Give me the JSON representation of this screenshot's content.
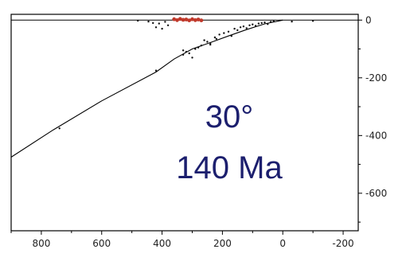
{
  "colors": {
    "frame": "#000000",
    "slab": "#000000",
    "quake_black": "#111111",
    "quake_red": "#c0392b",
    "label": "#1c1f6e",
    "tick": "#222222"
  },
  "annotation": {
    "angle": "30°",
    "age": "140 Ma"
  },
  "chart_data": {
    "type": "scatter",
    "title": "",
    "xlabel": "",
    "ylabel": "",
    "xlim": [
      900,
      -250
    ],
    "ylim": [
      -730,
      20
    ],
    "x_reversed": true,
    "y_axis_side": "right",
    "grid": false,
    "x_ticks": [
      "800",
      "600",
      "400",
      "200",
      "0",
      "-200"
    ],
    "x_tick_values": [
      800,
      600,
      400,
      200,
      0,
      -200
    ],
    "y_ticks": [
      "0",
      "-200",
      "-400",
      "-600"
    ],
    "y_tick_values": [
      0,
      -200,
      -400,
      -600
    ],
    "series": [
      {
        "kind": "line",
        "color": "#000000",
        "x": [
          900,
          760,
          600,
          420,
          360,
          300,
          240,
          180,
          120,
          60,
          0
        ],
        "y": [
          -475,
          -380,
          -280,
          -180,
          -135,
          -100,
          -78,
          -55,
          -33,
          -13,
          0
        ]
      },
      {
        "kind": "points",
        "color": "#111111",
        "x": [
          480,
          445,
          430,
          420,
          410,
          400,
          390,
          380,
          330,
          320,
          300,
          280,
          260,
          240,
          225,
          210,
          195,
          180,
          170,
          160,
          150,
          140,
          130,
          120,
          110,
          100,
          90,
          80,
          70,
          60,
          50,
          40,
          30,
          -30,
          -100,
          330,
          310,
          290,
          270,
          250,
          240,
          220,
          420,
          740
        ],
        "y": [
          -2,
          -5,
          -10,
          -25,
          -12,
          -30,
          -6,
          -18,
          -120,
          -110,
          -130,
          -95,
          -70,
          -80,
          -60,
          -50,
          -45,
          -40,
          -55,
          -30,
          -35,
          -25,
          -22,
          -28,
          -18,
          -15,
          -20,
          -12,
          -10,
          -8,
          -14,
          -6,
          -4,
          -5,
          -3,
          -105,
          -115,
          -100,
          -88,
          -75,
          -85,
          -65,
          -175,
          -375
        ]
      },
      {
        "kind": "points",
        "color": "#c0392b",
        "x": [
          360,
          350,
          340,
          330,
          320,
          310,
          300,
          290,
          280,
          270
        ],
        "y": [
          3,
          0,
          4,
          1,
          2,
          -1,
          3,
          0,
          2,
          -1
        ]
      }
    ]
  }
}
